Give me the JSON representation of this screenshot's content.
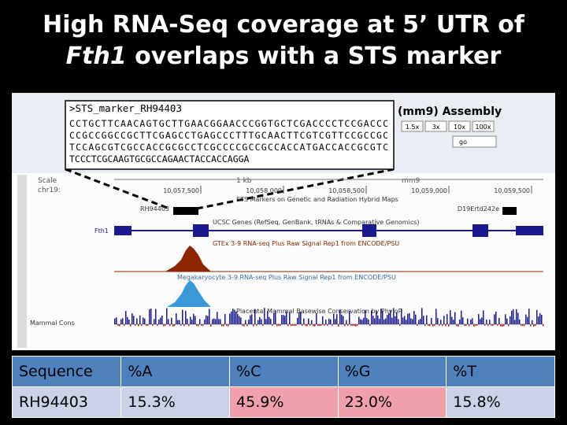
{
  "title": {
    "line1": "High RNA-Seq coverage at 5’ UTR of",
    "line2_italic": "Fth1",
    "line2_rest": " overlaps with a STS marker"
  },
  "sequence_box": {
    "header": ">STS_marker_RH94403",
    "lines": [
      "CCTGCTTCAACAGTGCTTGAACGGAACCCGGTGCTCGACCCCTCCGACCC",
      "CCGCCGGCCGCTTCGAGCCTGAGCCCTTTGCAACTTCGTCGTTCCGCCGC",
      "TCCAGCGTCGCCACCGCGCCTCGCCCCGCCGCCACCATGACCACCGCGTC",
      "TCCCTCGCAAGTGCGCCAGAACTACCACCAGGA"
    ]
  },
  "browser": {
    "assembly": "(mm9) Assembly",
    "zoom_buttons": [
      "1.5x",
      "3x",
      "10x",
      "100x"
    ],
    "go": "go",
    "scale_label": "Scale",
    "chrom_label": "chr19:",
    "scale_size": "1 kb",
    "build": "mm9",
    "positions": [
      "10,057,500",
      "10,058,000",
      "10,058,500",
      "10,059,000",
      "10,059,500"
    ],
    "sts_track": "STS Markers on Genetic and Radiation Hybrid Maps",
    "sts_left": "RH94403",
    "sts_right": "D19Ertd242e",
    "genes_track": "UCSC Genes (RefSeq, GenBank, tRNAs & Comparative Genomics)",
    "gene": "Fth1",
    "rna_track_1": "GTEx 3-9 RNA-seq Plus Raw Signal Rep1 from ENCODE/PSU",
    "rna_track_2": "Megakaryocyte 3-9 RNA-seq Plus Raw Signal Rep1 from ENCODE/PSU",
    "cons_track": "Placental Mammal Basewise Conservation by PhyloP",
    "side_labels": [
      "Mammal Cons"
    ]
  },
  "table": {
    "header": [
      "Sequence",
      "%A",
      "%C",
      "%G",
      "%T"
    ],
    "rows": [
      [
        "RH94403",
        "15.3%",
        "45.9%",
        "23.0%",
        "15.8%"
      ]
    ]
  }
}
